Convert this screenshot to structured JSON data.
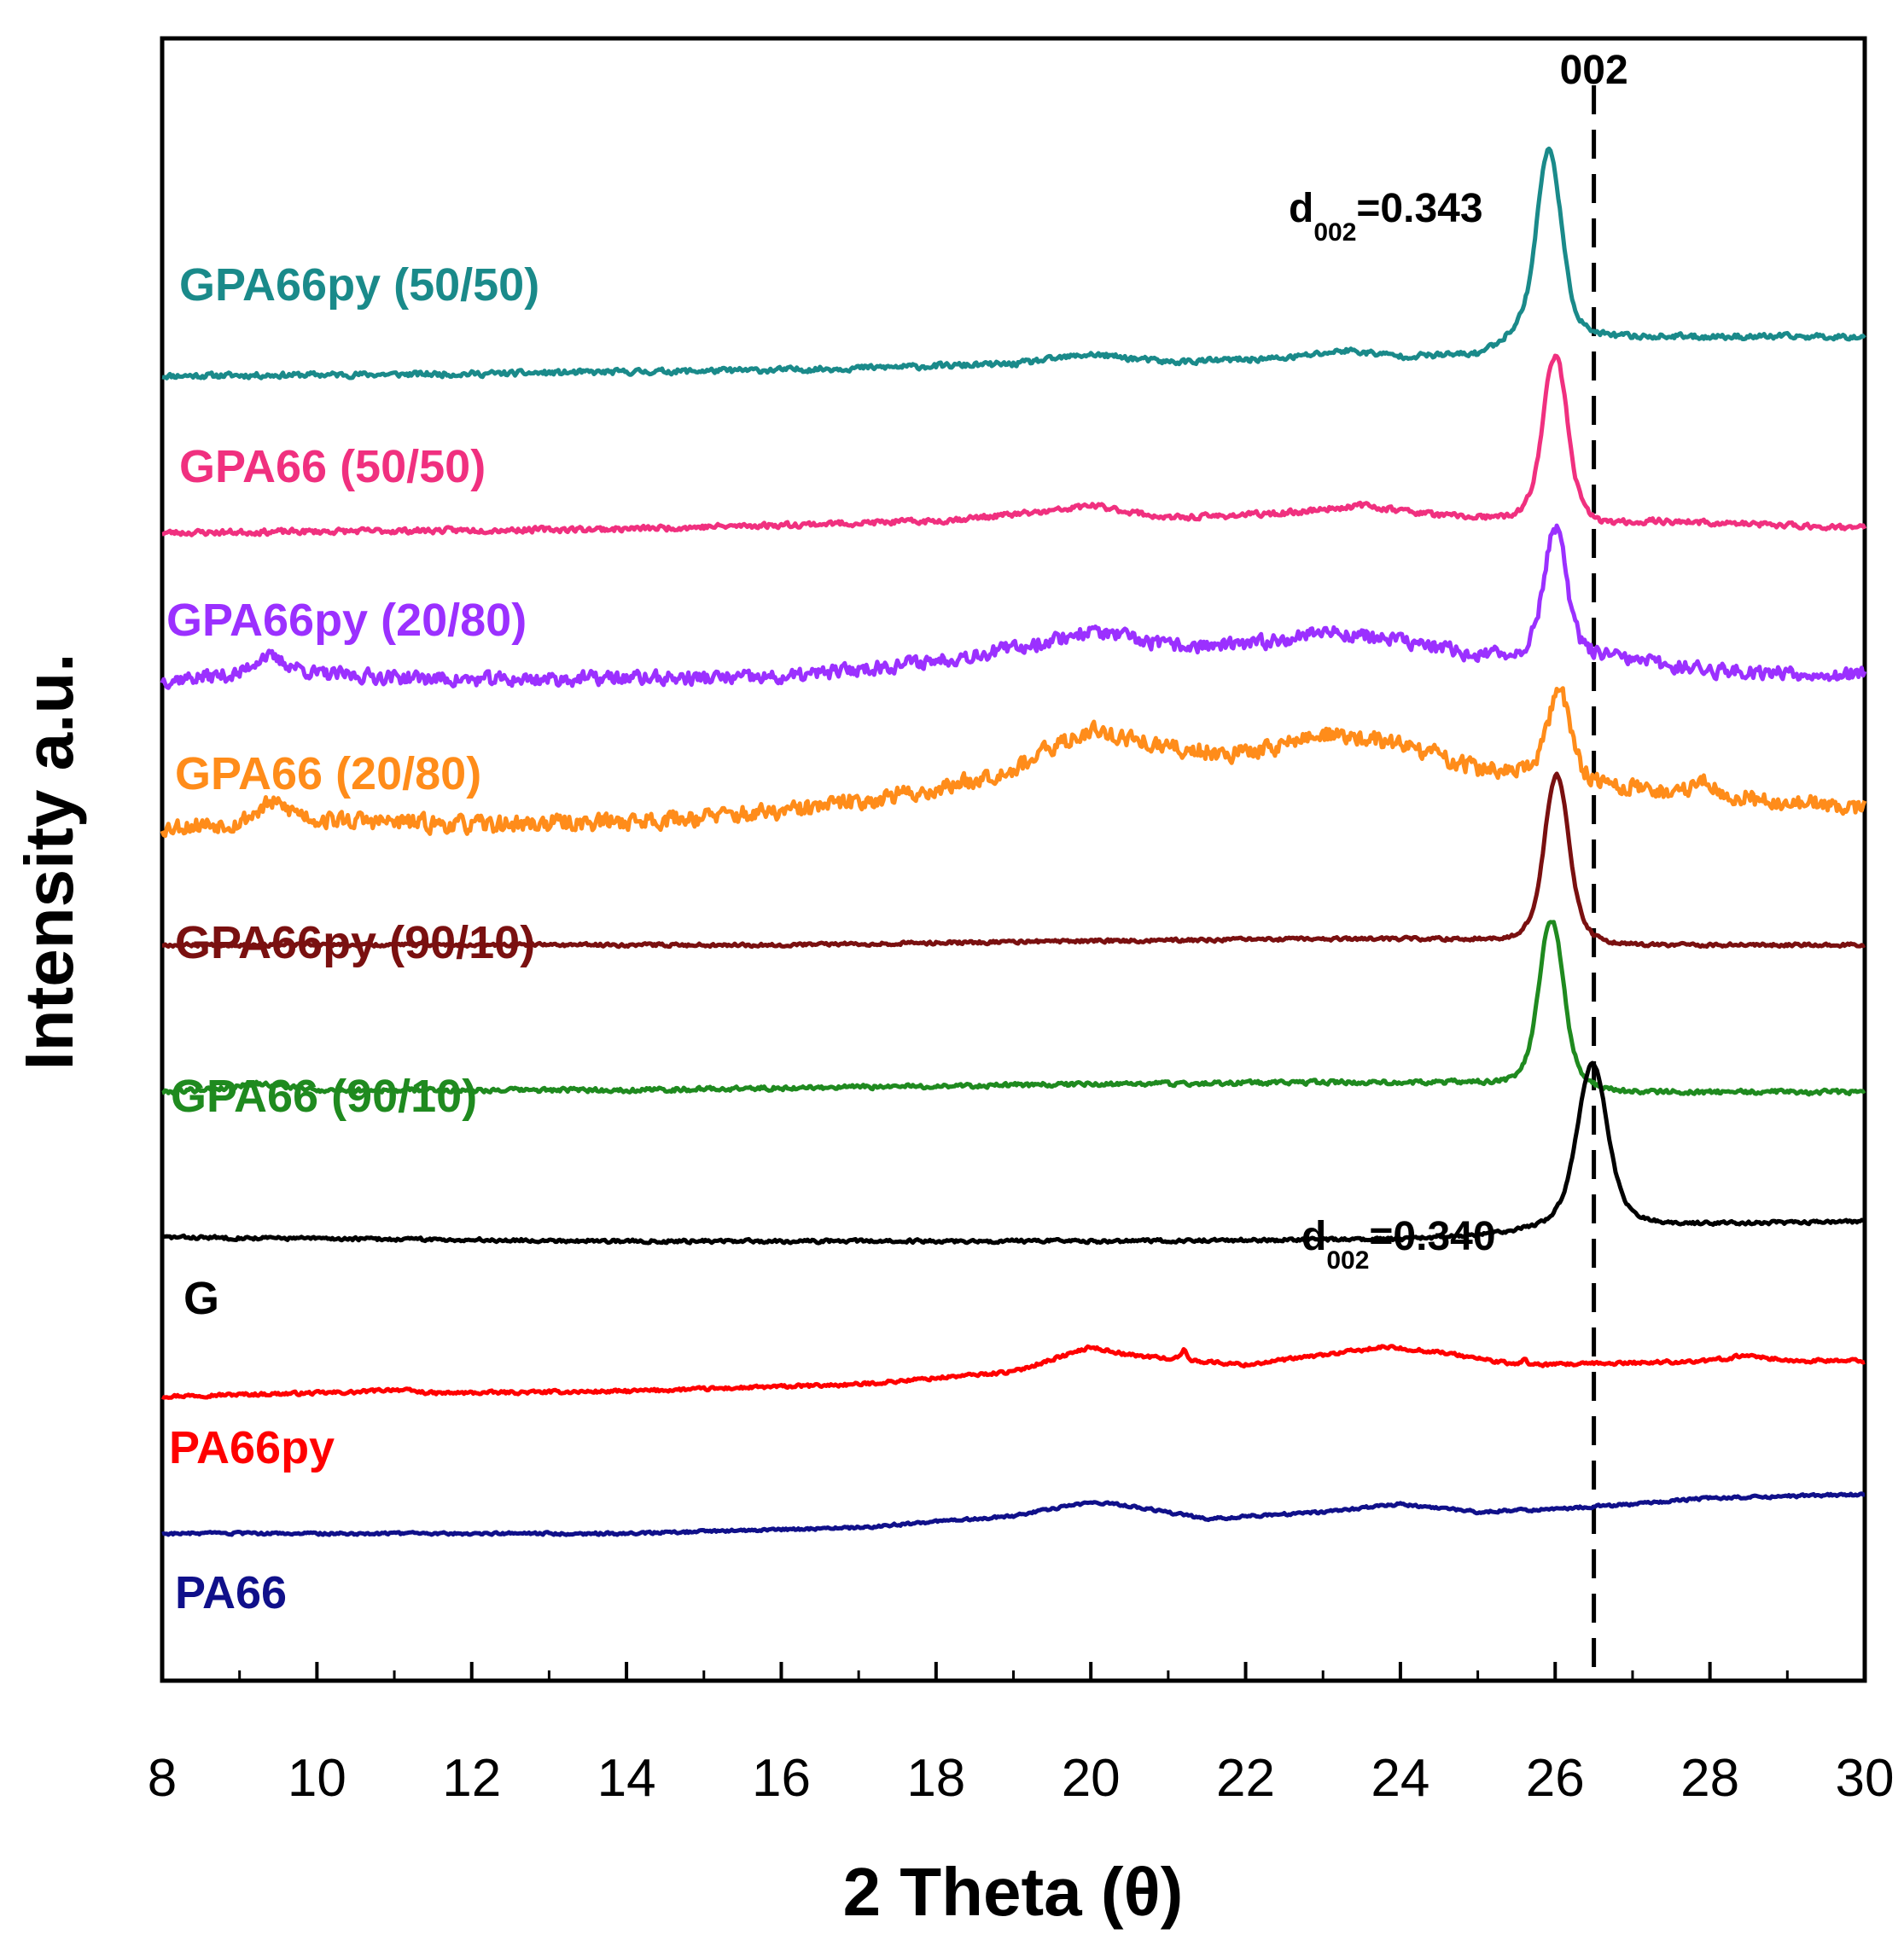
{
  "chart_data": {
    "type": "line",
    "title": "",
    "xlabel": "2 Theta (θ)",
    "ylabel": "Intensity a.u.",
    "xlim": [
      8,
      30
    ],
    "x_ticks": [
      8,
      10,
      12,
      14,
      16,
      18,
      20,
      22,
      24,
      26,
      28,
      30
    ],
    "x_tick_labels": [
      "8",
      "10",
      "12",
      "14",
      "16",
      "18",
      "20",
      "22",
      "24",
      "26",
      "28",
      "30"
    ],
    "y_ticks_visible": false,
    "reference_line": {
      "x": 26.5,
      "label": "002",
      "style": "dashed"
    },
    "annotations": [
      {
        "id": "d-gpa66py-5050",
        "main": "d",
        "sub": "002",
        "rest": "=0.343",
        "near_series": "GPA66py (50/50)"
      },
      {
        "id": "d-g",
        "main": "d",
        "sub": "002",
        "rest": "=0.340",
        "near_series": "G"
      }
    ],
    "series": [
      {
        "name": "GPA66py (50/50)",
        "color": "#1a8a8a",
        "offset": 0.93,
        "noise": 0.0025,
        "seed": 11,
        "points": [
          [
            8,
            0
          ],
          [
            12,
            0.002
          ],
          [
            16,
            0.006
          ],
          [
            19,
            0.012
          ],
          [
            20,
            0.022
          ],
          [
            21,
            0.014
          ],
          [
            22.5,
            0.018
          ],
          [
            23.3,
            0.026
          ],
          [
            24,
            0.02
          ],
          [
            25,
            0.022
          ],
          [
            25.5,
            0.04
          ]
        ],
        "peaks": [
          {
            "center": 25.92,
            "width": 0.22,
            "height": 0.19
          }
        ]
      },
      {
        "name": "GPA66 (50/50)",
        "color": "#f0307f",
        "offset": 0.77,
        "noise": 0.0025,
        "seed": 23,
        "points": [
          [
            8,
            0
          ],
          [
            14,
            0.004
          ],
          [
            18,
            0.012
          ],
          [
            19.5,
            0.022
          ],
          [
            20,
            0.028
          ],
          [
            21,
            0.015
          ],
          [
            22.5,
            0.02
          ],
          [
            23.5,
            0.028
          ],
          [
            24.5,
            0.018
          ],
          [
            26.5,
            0.008
          ],
          [
            27.3,
            0.012
          ],
          [
            30,
            0.005
          ]
        ],
        "peaks": [
          {
            "center": 26.0,
            "width": 0.22,
            "height": 0.17
          }
        ]
      },
      {
        "name": "GPA66py (20/80)",
        "color": "#9b30ff",
        "offset": 0.62,
        "noise": 0.0065,
        "seed": 37,
        "points": [
          [
            8,
            0
          ],
          [
            9,
            0.006
          ],
          [
            9.3,
            0.025
          ],
          [
            10,
            0.006
          ],
          [
            12,
            0
          ],
          [
            14,
            0.002
          ],
          [
            16,
            0.002
          ],
          [
            18,
            0.02
          ],
          [
            19,
            0.032
          ],
          [
            20,
            0.05
          ],
          [
            21,
            0.035
          ],
          [
            22,
            0.035
          ],
          [
            23,
            0.05
          ],
          [
            24,
            0.04
          ],
          [
            25,
            0.025
          ],
          [
            26.5,
            0.025
          ],
          [
            28,
            0.01
          ],
          [
            30,
            0.005
          ]
        ],
        "peaks": [
          {
            "center": 26.0,
            "width": 0.2,
            "height": 0.13
          }
        ]
      },
      {
        "name": "GPA66 (20/80)",
        "color": "#ff8c1a",
        "offset": 0.47,
        "noise": 0.008,
        "seed": 53,
        "points": [
          [
            8,
            0
          ],
          [
            9,
            0.005
          ],
          [
            9.4,
            0.025
          ],
          [
            10,
            0.008
          ],
          [
            12,
            0.002
          ],
          [
            14,
            0.006
          ],
          [
            16,
            0.015
          ],
          [
            18,
            0.038
          ],
          [
            19,
            0.06
          ],
          [
            20,
            0.1
          ],
          [
            21,
            0.08
          ],
          [
            22,
            0.075
          ],
          [
            23,
            0.095
          ],
          [
            24,
            0.085
          ],
          [
            25,
            0.06
          ],
          [
            26.5,
            0.045
          ],
          [
            27.5,
            0.035
          ],
          [
            28,
            0.035
          ],
          [
            29,
            0.025
          ],
          [
            30,
            0.02
          ]
        ],
        "peaks": [
          {
            "center": 26.05,
            "width": 0.2,
            "height": 0.09
          },
          {
            "center": 27.9,
            "width": 0.15,
            "height": 0.015
          }
        ]
      },
      {
        "name": "GPA66py (90/10)",
        "color": "#7a1010",
        "offset": 0.35,
        "noise": 0.0015,
        "seed": 67,
        "points": [
          [
            8,
            0
          ],
          [
            16,
            0
          ],
          [
            20,
            0.004
          ],
          [
            23,
            0.006
          ],
          [
            25,
            0.006
          ],
          [
            27,
            0
          ],
          [
            30,
            0
          ]
        ],
        "peaks": [
          {
            "center": 26.02,
            "width": 0.22,
            "height": 0.17
          }
        ]
      },
      {
        "name": "GPA66 (90/10)",
        "color": "#1f8a1f",
        "offset": 0.2,
        "noise": 0.002,
        "seed": 79,
        "points": [
          [
            8,
            0
          ],
          [
            8.8,
            0.004
          ],
          [
            9.2,
            0.009
          ],
          [
            10,
            0.002
          ],
          [
            14,
            0.002
          ],
          [
            20,
            0.008
          ],
          [
            23.5,
            0.01
          ],
          [
            25,
            0.01
          ],
          [
            27,
            0
          ],
          [
            30,
            0
          ]
        ],
        "peaks": [
          {
            "center": 25.95,
            "width": 0.22,
            "height": 0.17
          }
        ]
      },
      {
        "name": "G",
        "color": "#000000",
        "offset": 0.048,
        "noise": 0.0015,
        "seed": 83,
        "points": [
          [
            8,
            0.004
          ],
          [
            14,
            0
          ],
          [
            20,
            0
          ],
          [
            24,
            0.002
          ],
          [
            25,
            0.006
          ],
          [
            26.5,
            0.02
          ],
          [
            27,
            0.018
          ],
          [
            28,
            0.018
          ],
          [
            30,
            0.02
          ]
        ],
        "peaks": [
          {
            "center": 26.48,
            "width": 0.27,
            "height": 0.16
          }
        ]
      },
      {
        "name": "PA66py",
        "color": "#ff0000",
        "offset": -0.11,
        "noise": 0.0015,
        "seed": 97,
        "points": [
          [
            8,
            0
          ],
          [
            10.5,
            0.004
          ],
          [
            11,
            0.007
          ],
          [
            11.5,
            0.003
          ],
          [
            14,
            0.005
          ],
          [
            17,
            0.012
          ],
          [
            19,
            0.025
          ],
          [
            19.6,
            0.04
          ],
          [
            20,
            0.05
          ],
          [
            20.5,
            0.042
          ],
          [
            21.5,
            0.035
          ],
          [
            22,
            0.032
          ],
          [
            23,
            0.042
          ],
          [
            23.8,
            0.05
          ],
          [
            24.5,
            0.045
          ],
          [
            25.5,
            0.032
          ],
          [
            26,
            0.032
          ],
          [
            28,
            0.036
          ],
          [
            28.5,
            0.042
          ],
          [
            29,
            0.036
          ],
          [
            30,
            0.036
          ]
        ],
        "peaks": [
          {
            "center": 21.2,
            "width": 0.05,
            "height": 0.01
          },
          {
            "center": 25.6,
            "width": 0.05,
            "height": 0.006
          }
        ]
      },
      {
        "name": "PA66",
        "color": "#10108a",
        "offset": -0.25,
        "noise": 0.0012,
        "seed": 103,
        "points": [
          [
            8,
            0
          ],
          [
            14,
            0
          ],
          [
            17,
            0.006
          ],
          [
            19,
            0.018
          ],
          [
            20,
            0.032
          ],
          [
            20.5,
            0.028
          ],
          [
            21.5,
            0.015
          ],
          [
            23,
            0.022
          ],
          [
            24,
            0.03
          ],
          [
            25,
            0.022
          ],
          [
            26,
            0.025
          ],
          [
            27,
            0.03
          ],
          [
            28,
            0.036
          ],
          [
            29,
            0.038
          ],
          [
            30,
            0.04
          ]
        ],
        "peaks": []
      }
    ]
  }
}
